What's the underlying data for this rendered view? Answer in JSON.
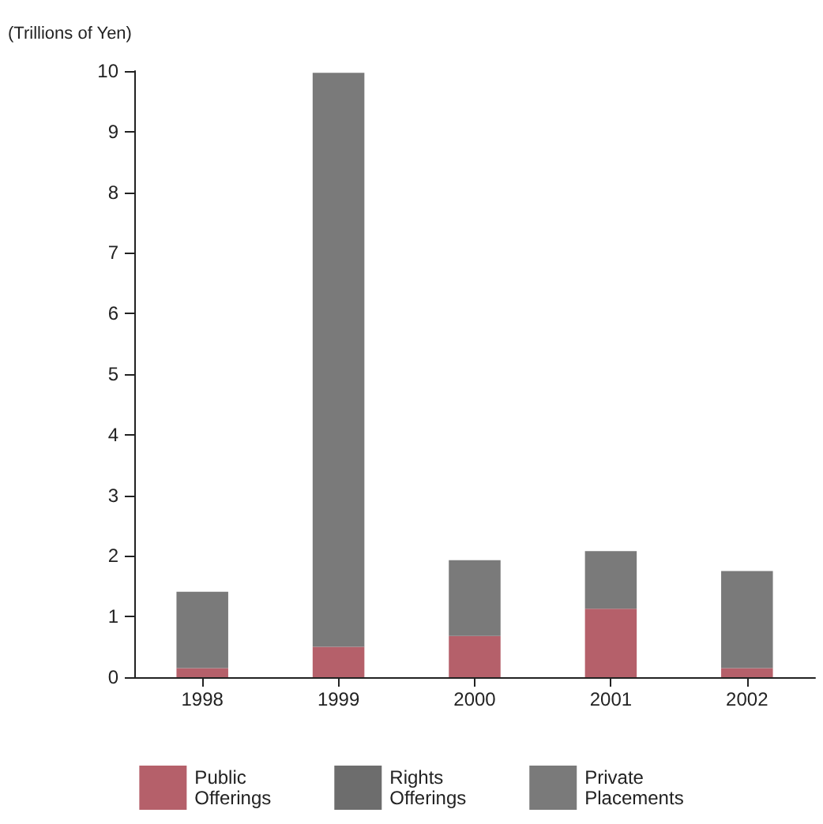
{
  "chart_data": {
    "type": "bar",
    "ylabel": "(Trillions of Yen)",
    "stacked": true,
    "categories": [
      "1998",
      "1999",
      "2000",
      "2001",
      "2002"
    ],
    "series": [
      {
        "name": "Public Offerings",
        "color": "#b5606a",
        "values": [
          0.15,
          0.5,
          0.68,
          1.13,
          0.15
        ]
      },
      {
        "name": "Rights Offerings",
        "color": "#6d6d6d",
        "values": [
          0,
          0,
          0,
          0,
          0
        ]
      },
      {
        "name": "Private Placements",
        "color": "#7a7a7a",
        "values": [
          1.26,
          9.47,
          1.25,
          0.95,
          1.6
        ]
      }
    ],
    "ylim": [
      0,
      10
    ],
    "yticks": [
      0,
      1,
      2,
      3,
      4,
      5,
      6,
      7,
      8,
      9,
      10
    ],
    "grid": false,
    "legend": "bottom"
  }
}
